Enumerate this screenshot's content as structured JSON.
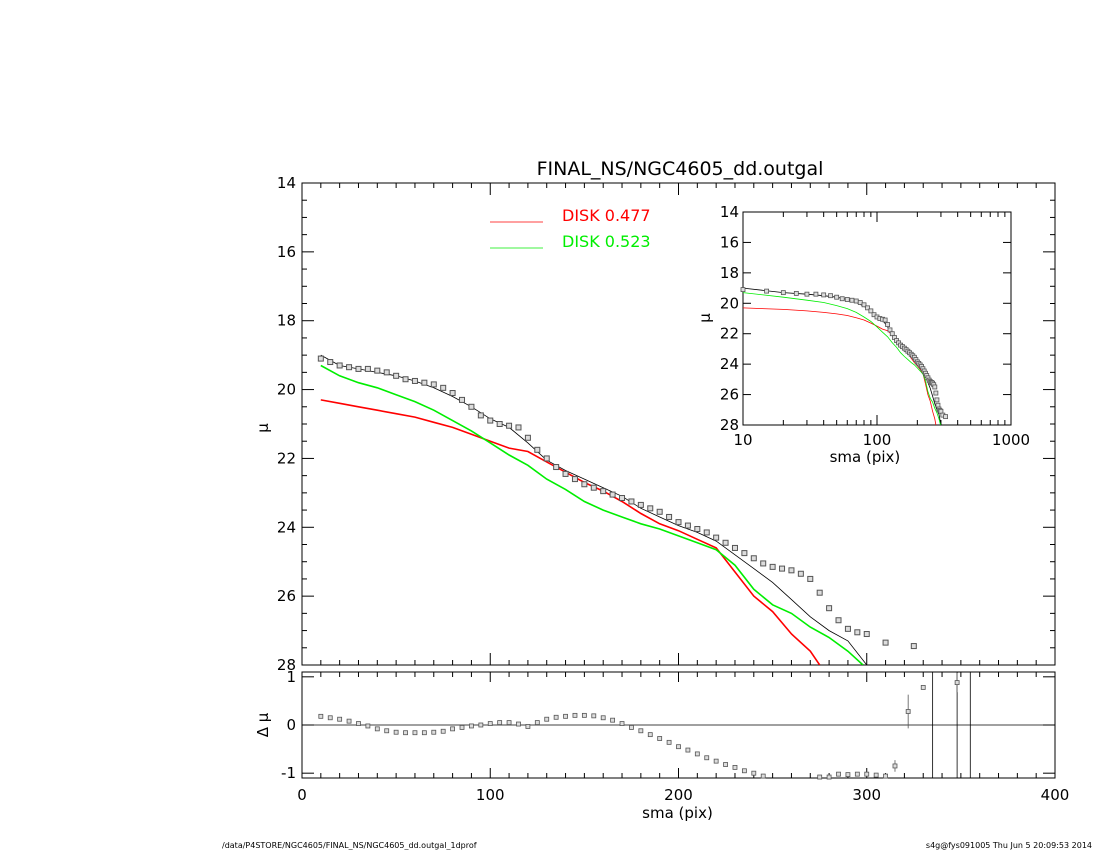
{
  "chart_data": {
    "title": "FINAL_NS/NGC4605_dd.outgal",
    "footer_left": "/data/P4STORE/NGC4605/FINAL_NS/NGC4605_dd.outgal_1dprof",
    "footer_right": "s4g@fys091005  Thu Jun  5 20:09:53 2014",
    "colors": {
      "disk1": "#ff0000",
      "disk2": "#00ee00",
      "model": "#000000",
      "data": "#555555"
    },
    "main": {
      "type": "scatter",
      "xlabel": "",
      "ylabel": "μ",
      "xlim": [
        0,
        400
      ],
      "ylim": [
        28,
        14
      ],
      "yticks": [
        14,
        16,
        18,
        20,
        22,
        24,
        26,
        28
      ],
      "legend": [
        {
          "label": "DISK",
          "value": "0.477",
          "color": "#ff0000"
        },
        {
          "label": "DISK",
          "value": "0.523",
          "color": "#00ee00"
        }
      ],
      "data_points": {
        "x": [
          10,
          15,
          20,
          25,
          30,
          35,
          40,
          45,
          50,
          55,
          60,
          65,
          70,
          75,
          80,
          85,
          90,
          95,
          100,
          105,
          110,
          115,
          120,
          125,
          130,
          135,
          140,
          145,
          150,
          155,
          160,
          165,
          170,
          175,
          180,
          185,
          190,
          195,
          200,
          205,
          210,
          215,
          220,
          225,
          230,
          235,
          240,
          245,
          250,
          255,
          260,
          265,
          270,
          275,
          280,
          285,
          290,
          295,
          300,
          310,
          325
        ],
        "y": [
          19.1,
          19.2,
          19.3,
          19.35,
          19.4,
          19.4,
          19.45,
          19.5,
          19.6,
          19.7,
          19.75,
          19.8,
          19.85,
          19.95,
          20.1,
          20.3,
          20.5,
          20.75,
          20.9,
          21.0,
          21.05,
          21.1,
          21.4,
          21.75,
          22.0,
          22.25,
          22.45,
          22.6,
          22.75,
          22.85,
          22.95,
          23.05,
          23.15,
          23.25,
          23.35,
          23.45,
          23.55,
          23.7,
          23.85,
          23.95,
          24.05,
          24.15,
          24.3,
          24.45,
          24.6,
          24.75,
          24.9,
          25.05,
          25.15,
          25.2,
          25.25,
          25.35,
          25.5,
          25.9,
          26.35,
          26.7,
          26.95,
          27.05,
          27.1,
          27.35,
          27.45
        ]
      },
      "model_total": {
        "x": [
          10,
          20,
          30,
          40,
          50,
          60,
          70,
          80,
          90,
          100,
          110,
          120,
          130,
          140,
          150,
          160,
          170,
          180,
          190,
          200,
          210,
          220,
          230,
          240,
          250,
          260,
          270,
          280,
          290,
          300
        ],
        "y": [
          19.0,
          19.3,
          19.4,
          19.5,
          19.6,
          19.75,
          19.95,
          20.2,
          20.5,
          20.85,
          21.1,
          21.55,
          22.05,
          22.35,
          22.6,
          22.85,
          23.1,
          23.45,
          23.7,
          23.95,
          24.15,
          24.4,
          24.8,
          25.2,
          25.6,
          26.1,
          26.6,
          27.0,
          27.3,
          28.0
        ]
      },
      "disk1": {
        "x": [
          10,
          20,
          30,
          40,
          50,
          60,
          70,
          80,
          90,
          100,
          110,
          120,
          130,
          140,
          150,
          160,
          170,
          180,
          190,
          200,
          210,
          220,
          230,
          240,
          250,
          260,
          270,
          275
        ],
        "y": [
          20.3,
          20.4,
          20.5,
          20.6,
          20.7,
          20.8,
          20.95,
          21.1,
          21.3,
          21.5,
          21.7,
          21.8,
          22.1,
          22.4,
          22.7,
          22.95,
          23.25,
          23.6,
          23.9,
          24.1,
          24.35,
          24.6,
          25.3,
          26.0,
          26.45,
          27.1,
          27.6,
          28.0
        ]
      },
      "disk2": {
        "x": [
          10,
          20,
          30,
          40,
          50,
          60,
          70,
          80,
          90,
          100,
          110,
          120,
          130,
          140,
          150,
          160,
          170,
          180,
          190,
          200,
          210,
          220,
          230,
          240,
          250,
          260,
          270,
          280,
          290,
          298
        ],
        "y": [
          19.3,
          19.6,
          19.8,
          19.95,
          20.15,
          20.35,
          20.6,
          20.9,
          21.2,
          21.55,
          21.9,
          22.2,
          22.6,
          22.9,
          23.25,
          23.5,
          23.7,
          23.9,
          24.05,
          24.25,
          24.45,
          24.65,
          25.1,
          25.8,
          26.25,
          26.5,
          26.9,
          27.2,
          27.6,
          28.0
        ]
      }
    },
    "inset": {
      "type": "line",
      "xlabel": "sma (pix)",
      "ylabel": "μ",
      "xscale": "log",
      "xlim": [
        10,
        1000
      ],
      "ylim": [
        28,
        14
      ],
      "yticks": [
        14,
        16,
        18,
        20,
        22,
        24,
        26,
        28
      ],
      "xticks": [
        10,
        100,
        1000
      ]
    },
    "residual": {
      "type": "scatter",
      "xlabel": "sma (pix)",
      "ylabel": "Δ μ",
      "xlim": [
        0,
        400
      ],
      "ylim": [
        -1.1,
        1.1
      ],
      "yticks": [
        1,
        0,
        -1
      ],
      "xticks": [
        0,
        100,
        200,
        300,
        400
      ],
      "x": [
        10,
        15,
        20,
        25,
        30,
        35,
        40,
        45,
        50,
        55,
        60,
        65,
        70,
        75,
        80,
        85,
        90,
        95,
        100,
        105,
        110,
        115,
        120,
        125,
        130,
        135,
        140,
        145,
        150,
        155,
        160,
        165,
        170,
        175,
        180,
        185,
        190,
        195,
        200,
        205,
        210,
        215,
        220,
        225,
        230,
        235,
        240,
        245,
        275,
        280,
        285,
        290,
        295,
        300,
        305,
        310,
        315,
        322,
        330,
        348
      ],
      "y": [
        0.18,
        0.15,
        0.12,
        0.08,
        0.03,
        -0.02,
        -0.08,
        -0.12,
        -0.15,
        -0.16,
        -0.16,
        -0.16,
        -0.15,
        -0.13,
        -0.08,
        -0.05,
        -0.02,
        0.0,
        0.03,
        0.05,
        0.05,
        0.02,
        -0.03,
        0.05,
        0.12,
        0.16,
        0.18,
        0.2,
        0.2,
        0.19,
        0.15,
        0.1,
        0.03,
        -0.05,
        -0.12,
        -0.2,
        -0.28,
        -0.36,
        -0.45,
        -0.52,
        -0.6,
        -0.68,
        -0.75,
        -0.82,
        -0.88,
        -0.95,
        -1.0,
        -1.06,
        -1.08,
        -1.08,
        -1.02,
        -1.03,
        -1.02,
        -1.02,
        -1.04,
        -1.06,
        -0.85,
        0.28,
        0.78,
        0.88
      ],
      "vlines": [
        335,
        348,
        355
      ]
    }
  }
}
